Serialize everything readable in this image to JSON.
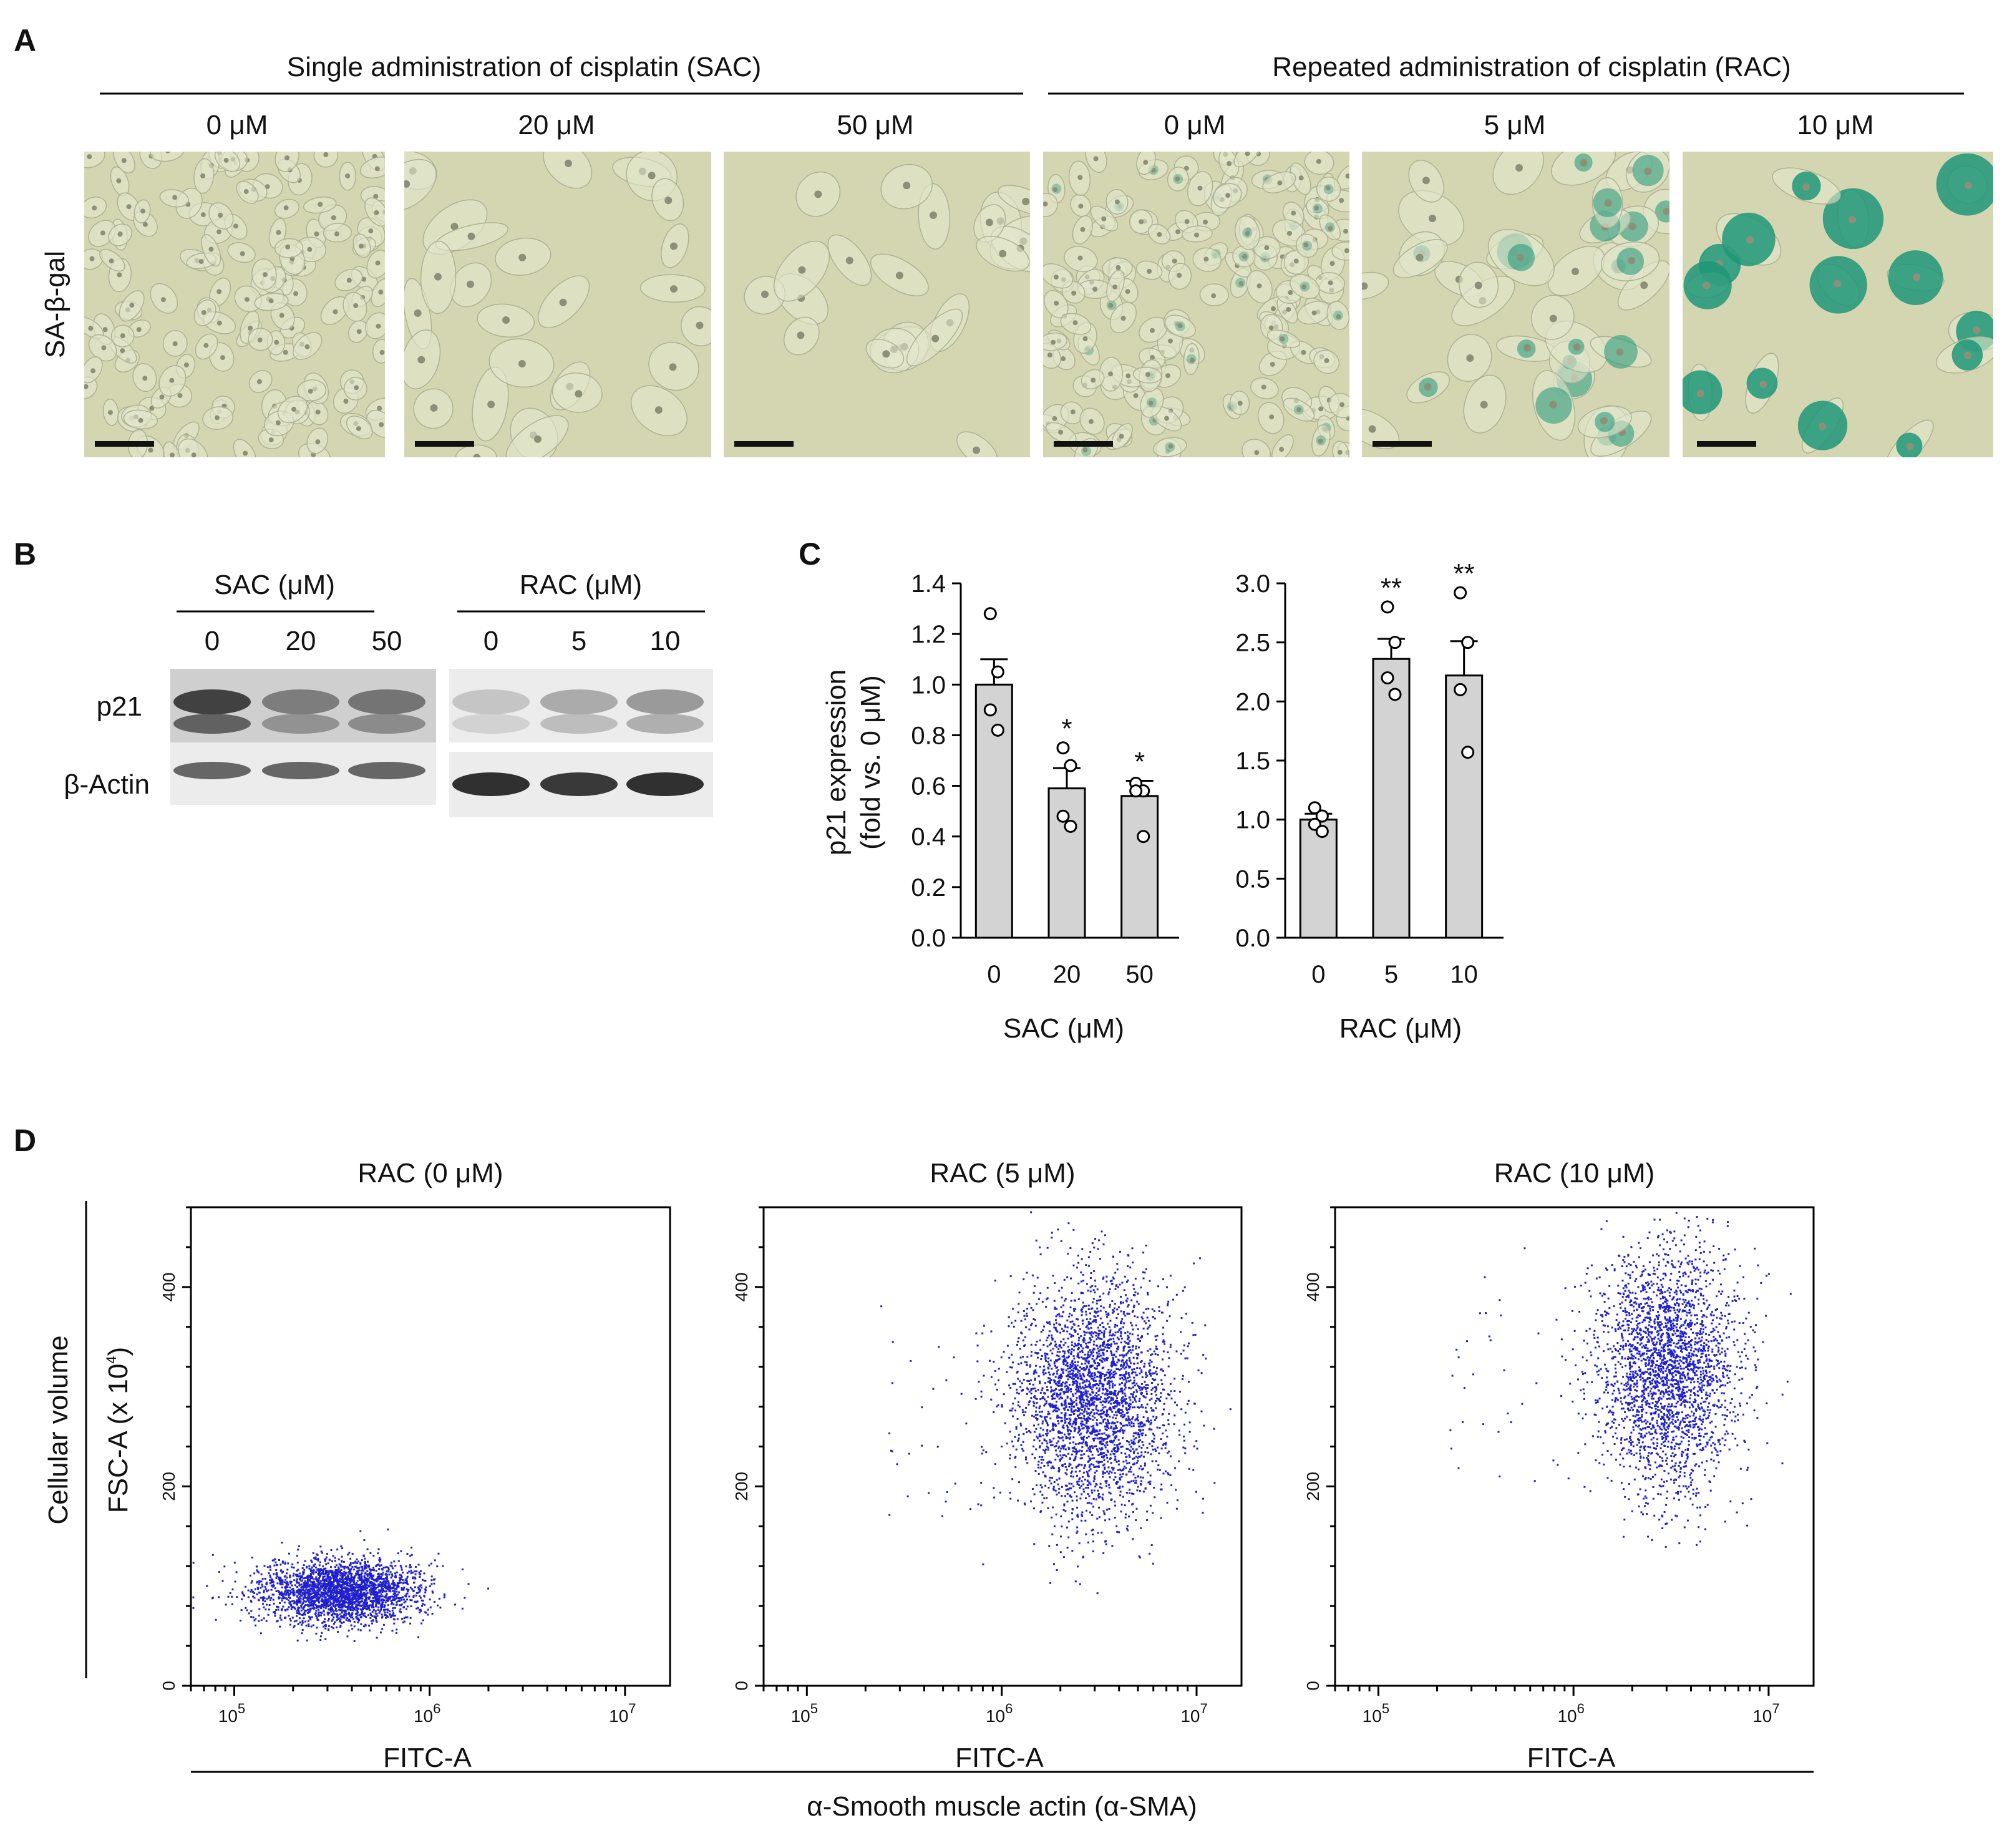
{
  "panels": {
    "a": "A",
    "b": "B",
    "c": "C",
    "d": "D"
  },
  "panel_a": {
    "group_sac": "Single administration of cisplatin (SAC)",
    "group_rac": "Repeated administration of cisplatin (RAC)",
    "row_label": "SA-β-gal",
    "columns": [
      "0 μM",
      "20 μM",
      "50 μM",
      "0 μM",
      "5 μM",
      "10 μM"
    ],
    "stain_level": [
      0.0,
      0.0,
      0.0,
      0.05,
      0.4,
      1.0
    ],
    "cell_count": [
      150,
      28,
      22,
      170,
      36,
      14
    ],
    "colors": {
      "background": "#d4d6b2",
      "stain": "#1e9678"
    }
  },
  "panel_b": {
    "sac_header": "SAC (μM)",
    "rac_header": "RAC (μM)",
    "sac_doses": [
      "0",
      "20",
      "50"
    ],
    "rac_doses": [
      "0",
      "5",
      "10"
    ],
    "rows": [
      "p21",
      "β-Actin"
    ],
    "p21_band_intensity": [
      0.9,
      0.55,
      0.6,
      0.15,
      0.3,
      0.4
    ],
    "actin_band_intensity": [
      0.6,
      0.6,
      0.6,
      0.9,
      0.85,
      0.9
    ]
  },
  "chart_data": [
    {
      "type": "bar",
      "panel": "C-left",
      "categories": [
        "0",
        "20",
        "50"
      ],
      "values": [
        1.0,
        0.59,
        0.56
      ],
      "sem": [
        0.1,
        0.08,
        0.06
      ],
      "points": [
        [
          1.28,
          1.05,
          0.9,
          0.82
        ],
        [
          0.75,
          0.68,
          0.48,
          0.44
        ],
        [
          0.61,
          0.58,
          0.58,
          0.4
        ]
      ],
      "significance": [
        "",
        "*",
        "*"
      ],
      "ylabel": "p21 expression",
      "ylabel2": "(fold vs. 0 μM)",
      "xlabel": "SAC (μM)",
      "ylim": [
        0,
        1.4
      ],
      "yticks": [
        "0.0",
        "0.2",
        "0.4",
        "0.6",
        "0.8",
        "1.0",
        "1.2",
        "1.4"
      ]
    },
    {
      "type": "bar",
      "panel": "C-right",
      "categories": [
        "0",
        "5",
        "10"
      ],
      "values": [
        1.0,
        2.36,
        2.22
      ],
      "sem": [
        0.05,
        0.17,
        0.29
      ],
      "points": [
        [
          1.1,
          1.03,
          0.96,
          0.9
        ],
        [
          2.8,
          2.5,
          2.2,
          2.06
        ],
        [
          2.92,
          2.5,
          2.1,
          1.57
        ]
      ],
      "significance": [
        "",
        "**",
        "**"
      ],
      "xlabel": "RAC (μM)",
      "ylim": [
        0,
        3.0
      ],
      "yticks": [
        "0.0",
        "0.5",
        "1.0",
        "1.5",
        "2.0",
        "2.5",
        "3.0"
      ]
    },
    {
      "type": "scatter",
      "panel": "D",
      "y_common_label": "Cellular volume",
      "y_axis_label": "FSC-A (x 10",
      "y_axis_sup": "4",
      "y_axis_close": ")",
      "x_common_label": "α-Smooth muscle actin (α-SMA)",
      "xscale": "log",
      "xlim": [
        60000,
        17000000
      ],
      "ylim": [
        0,
        480
      ],
      "yticks": [
        "0",
        "200",
        "400"
      ],
      "xtick_base": "10",
      "xtick_exponents": [
        "5",
        "6",
        "7"
      ],
      "point_color": "#2020cc",
      "plots": [
        {
          "title": "RAC (0 μM)",
          "xlabel": "FITC-A",
          "center_x": 350000,
          "spread_log10": 0.2,
          "center_y": 95,
          "spread_y": 16,
          "n": 2600
        },
        {
          "title": "RAC (5 μM)",
          "xlabel": "FITC-A",
          "center_x": 3000000,
          "spread_log10": 0.2,
          "center_y": 290,
          "spread_y": 60,
          "n": 3000
        },
        {
          "title": "RAC (10 μM)",
          "xlabel": "FITC-A",
          "center_x": 3000000,
          "spread_log10": 0.18,
          "center_y": 320,
          "spread_y": 60,
          "n": 2600
        }
      ]
    }
  ]
}
